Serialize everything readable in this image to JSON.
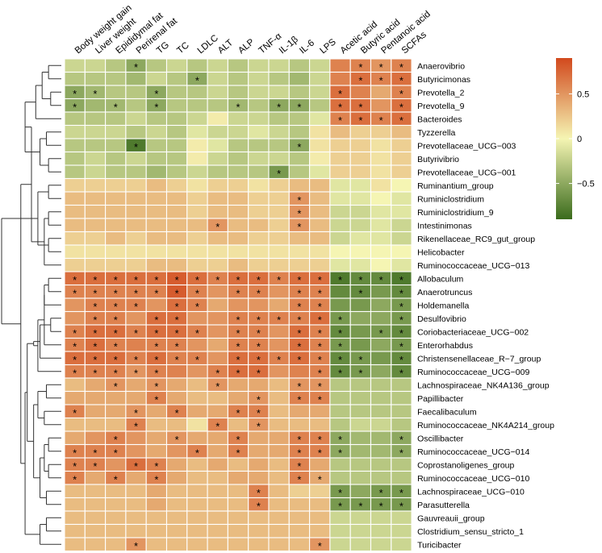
{
  "chart_data": {
    "type": "heatmap",
    "title": "",
    "columns": [
      "Body weight gain",
      "Liver weight",
      "Epididymal fat",
      "Perirenal fat",
      "TG",
      "TC",
      "LDLC",
      "ALT",
      "ALP",
      "TNF-α",
      "IL-1β",
      "IL-6",
      "LPS",
      "Acetic acid",
      "Butyric acid",
      "Pentanoic acid",
      "SCFAs"
    ],
    "rows": [
      "Anaerovibrio",
      "Butyricimonas",
      "Prevotella_2",
      "Prevotella_9",
      "Bacteroides",
      "Tyzzerella",
      "Prevotellaceae_UCG−003",
      "Butyrivibrio",
      "Prevotellaceae_UCG−001",
      "Ruminantium_group",
      "Ruminiclostridium",
      "Ruminiclostridium_9",
      "Intestinimonas",
      "Rikenellaceae_RC9_gut_group",
      "Helicobacter",
      "Ruminococcaceae_UCG−013",
      "Allobaculum",
      "Anaerotruncus",
      "Holdemanella",
      "Desulfovibrio",
      "Coriobacteriaceae_UCG−002",
      "Enterorhabdus",
      "Christensenellaceae_R−7_group",
      "Ruminococcaceae_UCG−009",
      "Lachnospiraceae_NK4A136_group",
      "Papillibacter",
      "Faecalibaculum",
      "Ruminococcaceae_NK4A214_group",
      "Oscillibacter",
      "Ruminococcaceae_UCG−014",
      "Coprostanoligenes_group",
      "Ruminococcaceae_UCG−010",
      "Lachnospiraceae_UCG−010",
      "Parasutterella",
      "Gauvreauii_group",
      "Clostridium_sensu_stricto_1",
      "Turicibacter"
    ],
    "values": [
      [
        -0.2,
        -0.2,
        -0.3,
        -0.5,
        -0.3,
        -0.2,
        -0.3,
        -0.2,
        -0.3,
        -0.2,
        -0.2,
        -0.3,
        -0.2,
        0.6,
        0.6,
        0.5,
        0.6
      ],
      [
        -0.3,
        -0.3,
        -0.3,
        -0.4,
        -0.2,
        -0.3,
        -0.5,
        -0.2,
        -0.3,
        -0.2,
        -0.3,
        -0.4,
        -0.2,
        0.6,
        0.7,
        0.6,
        0.7
      ],
      [
        -0.5,
        -0.4,
        -0.3,
        -0.3,
        -0.5,
        -0.3,
        -0.3,
        -0.2,
        -0.3,
        -0.2,
        -0.2,
        -0.3,
        -0.2,
        0.7,
        0.6,
        0.4,
        0.6
      ],
      [
        -0.5,
        -0.4,
        -0.4,
        -0.3,
        -0.5,
        -0.3,
        -0.3,
        -0.3,
        -0.4,
        -0.3,
        -0.5,
        -0.5,
        -0.3,
        0.7,
        0.7,
        0.5,
        0.7
      ],
      [
        -0.3,
        -0.3,
        -0.3,
        -0.2,
        -0.3,
        -0.3,
        -0.2,
        0.05,
        -0.2,
        -0.2,
        -0.3,
        -0.3,
        -0.1,
        0.6,
        0.7,
        0.6,
        0.7
      ],
      [
        -0.2,
        -0.2,
        -0.2,
        -0.3,
        -0.2,
        -0.3,
        -0.1,
        -0.2,
        -0.2,
        -0.1,
        -0.2,
        -0.3,
        0.1,
        0.3,
        0.2,
        0.2,
        0.3
      ],
      [
        -0.3,
        -0.3,
        -0.3,
        -0.8,
        -0.3,
        -0.3,
        0.05,
        -0.1,
        -0.3,
        -0.3,
        -0.3,
        -0.5,
        0.1,
        0.2,
        0.2,
        0.1,
        0.2
      ],
      [
        -0.3,
        -0.2,
        -0.3,
        -0.2,
        -0.3,
        -0.3,
        0.05,
        -0.2,
        -0.3,
        -0.2,
        -0.2,
        -0.3,
        0.05,
        0.2,
        0.2,
        0.1,
        0.2
      ],
      [
        -0.3,
        -0.2,
        -0.3,
        -0.3,
        -0.4,
        -0.3,
        -0.2,
        -0.3,
        -0.3,
        -0.3,
        -0.6,
        -0.3,
        -0.1,
        0.2,
        0.2,
        0.1,
        0.2
      ],
      [
        0.2,
        0.2,
        0.2,
        0.2,
        0.3,
        0.2,
        0.1,
        0.2,
        0.2,
        0.1,
        0.2,
        0.3,
        0.3,
        -0.1,
        -0.1,
        0.1,
        0.0
      ],
      [
        0.3,
        0.3,
        0.3,
        0.3,
        0.3,
        0.3,
        0.2,
        0.3,
        0.3,
        0.2,
        0.2,
        0.5,
        0.3,
        -0.1,
        -0.1,
        0.0,
        -0.1
      ],
      [
        0.3,
        0.3,
        0.3,
        0.3,
        0.3,
        0.3,
        0.2,
        0.3,
        0.3,
        0.2,
        0.2,
        0.5,
        0.3,
        -0.2,
        -0.2,
        -0.1,
        -0.1
      ],
      [
        0.3,
        0.3,
        0.3,
        0.3,
        0.3,
        0.3,
        0.3,
        0.5,
        0.3,
        0.3,
        0.2,
        0.5,
        0.3,
        -0.2,
        -0.2,
        -0.1,
        -0.2
      ],
      [
        0.2,
        0.2,
        0.3,
        0.2,
        0.3,
        0.3,
        0.2,
        0.3,
        0.3,
        0.2,
        0.2,
        0.3,
        0.3,
        -0.2,
        -0.1,
        -0.1,
        -0.2
      ],
      [
        0.1,
        0.1,
        0.1,
        0.1,
        0.1,
        0.1,
        0.1,
        0.1,
        0.1,
        0.1,
        0.1,
        0.1,
        0.1,
        0.0,
        0.0,
        0.0,
        0.0
      ],
      [
        0.2,
        0.2,
        0.2,
        0.2,
        0.3,
        0.3,
        0.2,
        0.2,
        0.3,
        0.2,
        0.2,
        0.2,
        0.2,
        -0.1,
        -0.1,
        0.0,
        -0.1
      ],
      [
        0.7,
        0.7,
        0.7,
        0.7,
        0.7,
        0.8,
        0.7,
        0.6,
        0.7,
        0.7,
        0.6,
        0.7,
        0.7,
        -0.8,
        -0.7,
        -0.7,
        -0.8
      ],
      [
        0.6,
        0.6,
        0.6,
        0.6,
        0.6,
        0.8,
        0.6,
        0.5,
        0.6,
        0.6,
        0.5,
        0.6,
        0.6,
        -0.7,
        -0.7,
        -0.6,
        -0.7
      ],
      [
        0.5,
        0.6,
        0.6,
        0.6,
        0.5,
        0.7,
        0.6,
        0.4,
        0.5,
        0.5,
        0.4,
        0.6,
        0.6,
        -0.6,
        -0.6,
        -0.5,
        -0.6
      ],
      [
        0.5,
        0.6,
        0.6,
        0.5,
        0.7,
        0.7,
        0.5,
        0.5,
        0.6,
        0.6,
        0.6,
        0.6,
        0.7,
        -0.6,
        -0.5,
        -0.5,
        -0.6
      ],
      [
        0.6,
        0.7,
        0.7,
        0.6,
        0.7,
        0.7,
        0.6,
        0.5,
        0.6,
        0.6,
        0.5,
        0.7,
        0.6,
        -0.7,
        -0.6,
        -0.6,
        -0.7
      ],
      [
        0.6,
        0.7,
        0.6,
        0.6,
        0.6,
        0.6,
        0.5,
        0.4,
        0.6,
        0.6,
        0.5,
        0.7,
        0.6,
        -0.6,
        -0.6,
        -0.5,
        -0.6
      ],
      [
        0.7,
        0.7,
        0.7,
        0.6,
        0.7,
        0.6,
        0.6,
        0.5,
        0.7,
        0.7,
        0.6,
        0.7,
        0.6,
        -0.7,
        -0.6,
        -0.6,
        -0.7
      ],
      [
        0.6,
        0.6,
        0.6,
        0.5,
        0.6,
        0.6,
        0.5,
        0.6,
        0.7,
        0.7,
        0.5,
        0.6,
        0.6,
        -0.7,
        -0.6,
        -0.5,
        -0.7
      ],
      [
        0.3,
        0.4,
        0.5,
        0.4,
        0.5,
        0.4,
        0.3,
        0.5,
        0.4,
        0.4,
        0.3,
        0.5,
        0.5,
        -0.3,
        -0.3,
        -0.3,
        -0.3
      ],
      [
        0.4,
        0.4,
        0.4,
        0.4,
        0.6,
        0.4,
        0.3,
        0.3,
        0.4,
        0.5,
        0.3,
        0.6,
        0.6,
        -0.3,
        -0.3,
        -0.3,
        -0.3
      ],
      [
        0.6,
        0.4,
        0.4,
        0.5,
        0.4,
        0.6,
        0.4,
        0.4,
        0.6,
        0.6,
        0.3,
        0.4,
        0.4,
        -0.3,
        -0.3,
        -0.3,
        -0.3
      ],
      [
        0.3,
        0.3,
        0.3,
        0.6,
        0.3,
        0.3,
        0.1,
        0.6,
        0.3,
        0.5,
        0.3,
        0.3,
        0.3,
        -0.3,
        -0.2,
        -0.2,
        -0.3
      ],
      [
        0.4,
        0.5,
        0.6,
        0.5,
        0.4,
        0.5,
        0.4,
        0.4,
        0.6,
        0.4,
        0.4,
        0.6,
        0.6,
        -0.5,
        -0.4,
        -0.4,
        -0.5
      ],
      [
        0.6,
        0.6,
        0.6,
        0.5,
        0.4,
        0.5,
        0.6,
        0.4,
        0.6,
        0.4,
        0.4,
        0.6,
        0.6,
        -0.5,
        -0.4,
        -0.4,
        -0.5
      ],
      [
        0.6,
        0.6,
        0.5,
        0.7,
        0.6,
        0.4,
        0.3,
        0.4,
        0.3,
        0.4,
        0.3,
        0.6,
        0.4,
        -0.3,
        -0.3,
        -0.3,
        -0.3
      ],
      [
        0.6,
        0.4,
        0.6,
        0.4,
        0.6,
        0.4,
        0.3,
        0.3,
        0.4,
        0.4,
        0.3,
        0.6,
        0.4,
        -0.3,
        -0.3,
        -0.3,
        -0.3
      ],
      [
        0.3,
        0.3,
        0.3,
        0.3,
        0.4,
        0.3,
        0.3,
        0.3,
        0.3,
        0.6,
        0.3,
        0.2,
        0.2,
        -0.6,
        -0.5,
        -0.6,
        -0.6
      ],
      [
        0.3,
        0.3,
        0.3,
        0.3,
        0.4,
        0.3,
        0.3,
        0.3,
        0.3,
        0.6,
        0.3,
        0.3,
        0.3,
        -0.6,
        -0.6,
        -0.6,
        -0.6
      ],
      [
        0.3,
        0.3,
        0.3,
        0.3,
        0.3,
        0.3,
        0.3,
        0.3,
        0.3,
        0.3,
        0.3,
        0.3,
        0.3,
        -0.2,
        -0.2,
        -0.2,
        -0.2
      ],
      [
        0.3,
        0.3,
        0.3,
        0.3,
        0.3,
        0.3,
        0.3,
        0.3,
        0.3,
        0.3,
        0.3,
        0.3,
        0.3,
        -0.2,
        -0.2,
        -0.2,
        -0.2
      ],
      [
        0.3,
        0.3,
        0.3,
        0.5,
        0.3,
        0.3,
        0.3,
        0.3,
        0.3,
        0.3,
        0.3,
        0.3,
        0.5,
        -0.2,
        -0.2,
        -0.2,
        -0.2
      ]
    ],
    "significant": [
      [
        3,
        14,
        15,
        16
      ],
      [
        6,
        14,
        15,
        16
      ],
      [
        0,
        1,
        4,
        13,
        16
      ],
      [
        0,
        2,
        4,
        8,
        10,
        11,
        13,
        14,
        16
      ],
      [
        13,
        14,
        15,
        16
      ],
      [],
      [
        3,
        11
      ],
      [],
      [
        10
      ],
      [],
      [
        11
      ],
      [
        11
      ],
      [
        7,
        11
      ],
      [],
      [],
      [],
      [
        0,
        1,
        2,
        3,
        4,
        5,
        6,
        7,
        8,
        9,
        10,
        11,
        12,
        13,
        14,
        15,
        16
      ],
      [
        0,
        1,
        2,
        3,
        4,
        5,
        6,
        8,
        9,
        11,
        12,
        14,
        16
      ],
      [
        1,
        2,
        3,
        5,
        6,
        11,
        12,
        16
      ],
      [
        1,
        2,
        4,
        5,
        8,
        9,
        10,
        11,
        12,
        13,
        16
      ],
      [
        0,
        1,
        2,
        3,
        4,
        5,
        6,
        8,
        9,
        11,
        12,
        13,
        15,
        16
      ],
      [
        0,
        1,
        2,
        4,
        5,
        8,
        9,
        11,
        12,
        13,
        16
      ],
      [
        0,
        1,
        2,
        3,
        4,
        5,
        6,
        8,
        9,
        10,
        11,
        12,
        13,
        14,
        16
      ],
      [
        0,
        1,
        2,
        3,
        4,
        7,
        8,
        9,
        12,
        13,
        14,
        16
      ],
      [
        2,
        4,
        7,
        11,
        12
      ],
      [
        4,
        9,
        11,
        12
      ],
      [
        0,
        3,
        5,
        8,
        9
      ],
      [
        3,
        7,
        9
      ],
      [
        2,
        5,
        8,
        11,
        12,
        13,
        16
      ],
      [
        0,
        1,
        2,
        6,
        8,
        11,
        12,
        13,
        16
      ],
      [
        0,
        1,
        3,
        4,
        11
      ],
      [
        0,
        2,
        4,
        11,
        12
      ],
      [
        9,
        13,
        15,
        16
      ],
      [
        9,
        13,
        14,
        15,
        16
      ],
      [],
      [],
      [
        3,
        12
      ]
    ],
    "dendrogram_merges": [
      [
        -1,
        -2
      ],
      [
        -3,
        -4
      ],
      [
        1,
        2
      ],
      [
        -5,
        3
      ],
      [
        -6,
        -7
      ],
      [
        -8,
        -9
      ],
      [
        5,
        6
      ],
      [
        4,
        7
      ],
      [
        -10,
        -11
      ],
      [
        -12,
        -13
      ],
      [
        -14,
        -15
      ],
      [
        10,
        -16
      ],
      [
        9,
        11
      ],
      [
        8,
        12
      ],
      [
        -17,
        -18
      ],
      [
        15,
        -19
      ],
      [
        -20,
        -21
      ],
      [
        16,
        -22
      ],
      [
        17,
        -23
      ],
      [
        18,
        -24
      ],
      [
        19,
        20
      ],
      [
        -25,
        -26
      ],
      [
        -27,
        -28
      ],
      [
        22,
        23
      ],
      [
        -29,
        -30
      ],
      [
        -31,
        -32
      ],
      [
        25,
        26
      ],
      [
        -33,
        -34
      ],
      [
        27,
        28
      ],
      [
        24,
        29
      ],
      [
        21,
        30
      ],
      [
        -35,
        -36
      ],
      [
        32,
        -37
      ],
      [
        31,
        33
      ],
      [
        14,
        34
      ],
      [
        13,
        35
      ],
      [
        36,
        -999
      ]
    ],
    "dendrogram_heights": [
      0.3,
      0.25,
      0.45,
      0.6,
      0.35,
      0.3,
      0.5,
      0.85,
      0.3,
      0.3,
      0.3,
      0.4,
      0.55,
      0.7,
      0.3,
      0.4,
      0.25,
      0.4,
      0.5,
      0.55,
      0.65,
      0.35,
      0.4,
      0.55,
      0.3,
      0.3,
      0.4,
      0.35,
      0.5,
      0.65,
      0.8,
      0.35,
      0.5,
      0.85,
      0.95,
      1.4,
      1.4
    ],
    "color_scale": {
      "min": -0.9,
      "max": 0.9,
      "low": "#3a6b1c",
      "mid": "#f5f5b3",
      "high": "#d2491d",
      "ticks": [
        0.5,
        0,
        -0.5
      ],
      "tick_labels": [
        "0.5",
        "0",
        "−0.5"
      ]
    },
    "star_label": "*",
    "legend_position": "right"
  }
}
